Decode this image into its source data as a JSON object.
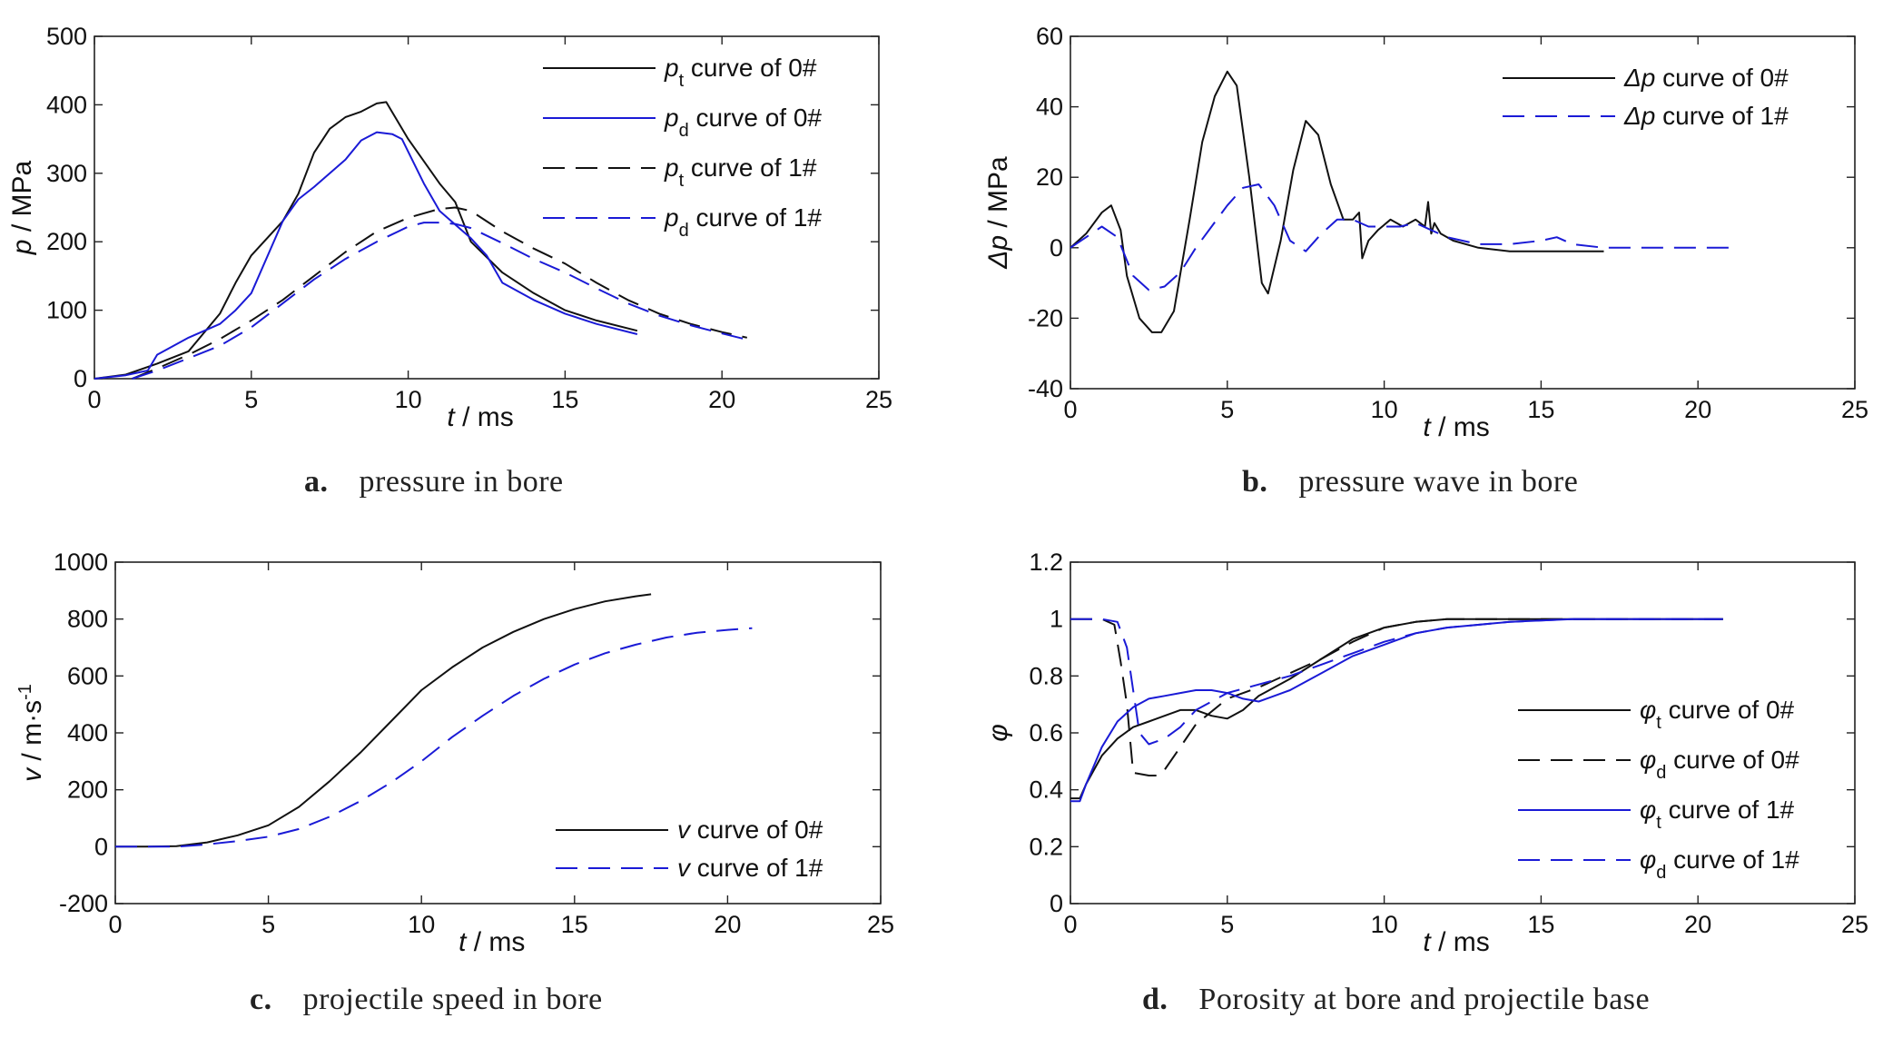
{
  "colors": {
    "black": "#111111",
    "blue": "#1a1ad6"
  },
  "panels": [
    {
      "id": "a",
      "caption": {
        "letter": "a.",
        "text": "pressure in bore"
      },
      "chart_data": {
        "type": "line",
        "xlabel_var": "t",
        "xlabel_unit": " / ms",
        "ylabel_var": "p",
        "ylabel_unit": " / MPa",
        "xlim": [
          0,
          25
        ],
        "ylim": [
          0,
          500
        ],
        "xticks": [
          0,
          5,
          10,
          15,
          20,
          25
        ],
        "yticks": [
          0,
          100,
          200,
          300,
          400,
          500
        ],
        "legend_position": "top-right",
        "series": [
          {
            "name": "p_t curve of 0#",
            "legend": {
              "sym": "p",
              "sub": "t",
              "text": " curve of  0#"
            },
            "color": "black",
            "dash": "solid",
            "x": [
              0,
              1,
              2,
              3,
              4,
              4.5,
              5,
              5.5,
              6,
              6.5,
              7,
              7.5,
              8,
              8.5,
              9,
              9.3,
              10,
              11,
              11.5,
              12,
              13,
              14,
              15,
              16,
              17.3
            ],
            "y": [
              0,
              6,
              22,
              40,
              95,
              140,
              180,
              205,
              230,
              270,
              330,
              365,
              382,
              390,
              402,
              404,
              350,
              285,
              258,
              200,
              155,
              125,
              100,
              85,
              70
            ]
          },
          {
            "name": "p_d curve of 0#",
            "legend": {
              "sym": "p",
              "sub": "d",
              "text": " curve of 0#"
            },
            "color": "blue",
            "dash": "solid",
            "x": [
              0,
              1,
              1.7,
              2,
              3,
              4,
              4.5,
              5,
              6,
              6.5,
              7,
              8,
              8.5,
              9,
              9.5,
              9.8,
              10.5,
              11,
              12,
              12.5,
              13,
              14,
              15,
              16,
              17.3
            ],
            "y": [
              0,
              5,
              12,
              35,
              60,
              80,
              100,
              125,
              230,
              262,
              280,
              320,
              348,
              360,
              357,
              350,
              285,
              245,
              205,
              180,
              140,
              115,
              95,
              80,
              65
            ]
          },
          {
            "name": "p_t curve of 1#",
            "legend": {
              "sym": "p",
              "sub": "t",
              "text": " curve of  1#"
            },
            "color": "black",
            "dash": "long",
            "x": [
              1.2,
              2,
              3,
              4,
              5,
              6,
              7,
              8,
              9,
              10,
              11,
              11.5,
              12,
              13,
              14,
              15,
              16,
              17,
              18,
              19,
              20,
              20.8
            ],
            "y": [
              0,
              15,
              35,
              58,
              85,
              115,
              150,
              185,
              215,
              235,
              248,
              250,
              245,
              215,
              190,
              168,
              140,
              115,
              95,
              80,
              68,
              60
            ]
          },
          {
            "name": "p_d curve of 1#",
            "legend": {
              "sym": "p",
              "sub": "d",
              "text": " curve of 1#"
            },
            "color": "blue",
            "dash": "long",
            "x": [
              1.2,
              2,
              3,
              4,
              5,
              6,
              7,
              8,
              9,
              10,
              10.5,
              11,
              11.5,
              12,
              13,
              14,
              15,
              16,
              17,
              18,
              19,
              20,
              20.8
            ],
            "y": [
              0,
              12,
              30,
              48,
              75,
              110,
              145,
              175,
              200,
              222,
              228,
              228,
              226,
              220,
              198,
              175,
              155,
              132,
              110,
              92,
              78,
              66,
              57
            ]
          }
        ]
      }
    },
    {
      "id": "b",
      "caption": {
        "letter": "b.",
        "text": "pressure wave in bore"
      },
      "chart_data": {
        "type": "line",
        "xlabel_var": "t",
        "xlabel_unit": " / ms",
        "ylabel_var": "Δp",
        "ylabel_unit": " / MPa",
        "xlim": [
          0,
          25
        ],
        "ylim": [
          -40,
          60
        ],
        "xticks": [
          0,
          5,
          10,
          15,
          20,
          25
        ],
        "yticks": [
          -40,
          -20,
          0,
          20,
          40,
          60
        ],
        "legend_position": "top-right",
        "series": [
          {
            "name": "Δp curve of  0#",
            "legend": {
              "sym": "Δp",
              "sub": "",
              "text": " curve of  0#"
            },
            "color": "black",
            "dash": "solid",
            "x": [
              0,
              0.5,
              1,
              1.3,
              1.6,
              1.8,
              2.2,
              2.6,
              2.9,
              3.3,
              3.8,
              4.2,
              4.6,
              5,
              5.3,
              5.7,
              6.1,
              6.3,
              6.7,
              7.1,
              7.5,
              7.9,
              8.3,
              8.7,
              9,
              9.2,
              9.3,
              9.5,
              9.8,
              10.2,
              10.6,
              11,
              11.3,
              11.4,
              11.5,
              11.6,
              11.8,
              12.2,
              13,
              14,
              15,
              16,
              17
            ],
            "y": [
              0,
              4,
              10,
              12,
              5,
              -8,
              -20,
              -24,
              -24,
              -18,
              8,
              30,
              43,
              50,
              46,
              20,
              -10,
              -13,
              2,
              22,
              36,
              32,
              18,
              8,
              8,
              10,
              -3,
              2,
              5,
              8,
              6,
              8,
              6,
              13,
              4,
              7,
              4,
              2,
              0,
              -1,
              -1,
              -1,
              -1
            ]
          },
          {
            "name": "Δp curve of 1#",
            "legend": {
              "sym": "Δp",
              "sub": "",
              "text": " curve of 1#"
            },
            "color": "blue",
            "dash": "long",
            "x": [
              0,
              1,
              1.5,
              2,
              2.5,
              3,
              3.5,
              4,
              4.5,
              5,
              5.5,
              6,
              6.5,
              7,
              7.5,
              8,
              8.5,
              9,
              9.5,
              10,
              10.5,
              11,
              12,
              13,
              14,
              15,
              15.5,
              16,
              17,
              18,
              19,
              20,
              21
            ],
            "y": [
              0,
              6,
              3,
              -8,
              -12,
              -11,
              -7,
              0,
              6,
              12,
              17,
              18,
              12,
              2,
              -1,
              4,
              8,
              8,
              6,
              6,
              6,
              7,
              3,
              1,
              1,
              2,
              3,
              1,
              0,
              0,
              0,
              0,
              0
            ]
          }
        ]
      }
    },
    {
      "id": "c",
      "caption": {
        "letter": "c.",
        "text": "projectile speed in bore"
      },
      "chart_data": {
        "type": "line",
        "xlabel_var": "t",
        "xlabel_unit": " / ms",
        "ylabel_var": "v",
        "ylabel_unit": " / m·s",
        "ylabel_sup": "-1",
        "xlim": [
          0,
          25
        ],
        "ylim": [
          -200,
          1000
        ],
        "xticks": [
          0,
          5,
          10,
          15,
          20,
          25
        ],
        "yticks": [
          -200,
          0,
          200,
          400,
          600,
          800,
          1000
        ],
        "legend_position": "bottom-right",
        "series": [
          {
            "name": "v curve of 0#",
            "legend": {
              "sym": "v",
              "sub": "",
              "text": " curve of 0#"
            },
            "color": "black",
            "dash": "solid",
            "x": [
              0,
              1,
              2,
              3,
              4,
              5,
              6,
              7,
              8,
              9,
              10,
              11,
              12,
              13,
              14,
              15,
              16,
              17,
              17.5
            ],
            "y": [
              0,
              0,
              2,
              15,
              40,
              75,
              140,
              230,
              330,
              440,
              550,
              630,
              700,
              755,
              800,
              835,
              862,
              880,
              887
            ]
          },
          {
            "name": "v curve of 1#",
            "legend": {
              "sym": "v",
              "sub": "",
              "text": " curve of 1#"
            },
            "color": "blue",
            "dash": "long",
            "x": [
              0,
              1,
              2,
              3,
              4,
              5,
              6,
              7,
              8,
              9,
              10,
              11,
              12,
              13,
              14,
              15,
              16,
              17,
              18,
              19,
              20,
              20.8
            ],
            "y": [
              0,
              0,
              0,
              8,
              20,
              35,
              62,
              105,
              160,
              225,
              300,
              385,
              460,
              530,
              590,
              640,
              680,
              710,
              735,
              752,
              762,
              768
            ]
          }
        ]
      }
    },
    {
      "id": "d",
      "caption": {
        "letter": "d.",
        "text": "Porosity at bore and projectile base"
      },
      "chart_data": {
        "type": "line",
        "xlabel_var": "t",
        "xlabel_unit": " / ms",
        "ylabel_var": "φ",
        "ylabel_unit": "",
        "xlim": [
          0,
          25
        ],
        "ylim": [
          0,
          1.2
        ],
        "xticks": [
          0,
          5,
          10,
          15,
          20,
          25
        ],
        "yticks": [
          0,
          0.2,
          0.4,
          0.6,
          0.8,
          1,
          1.2
        ],
        "legend_position": "bottom-right",
        "series": [
          {
            "name": "φt curve of 0#",
            "legend": {
              "sym": "φ",
              "sub": "t",
              "text": " curve of 0#"
            },
            "color": "black",
            "dash": "solid",
            "x": [
              0,
              0.3,
              0.5,
              1,
              1.5,
              2,
              2.5,
              3,
              3.5,
              4,
              4.5,
              5,
              5.5,
              6,
              7,
              8,
              9,
              10,
              11,
              12,
              14,
              16,
              18,
              20,
              20.8
            ],
            "y": [
              0.37,
              0.37,
              0.42,
              0.52,
              0.58,
              0.62,
              0.64,
              0.66,
              0.68,
              0.68,
              0.66,
              0.65,
              0.68,
              0.73,
              0.79,
              0.86,
              0.93,
              0.97,
              0.99,
              1.0,
              1.0,
              1.0,
              1.0,
              1.0,
              1.0
            ]
          },
          {
            "name": "φd curve of 0#",
            "legend": {
              "sym": "φ",
              "sub": "d",
              "text": " curve of 0#"
            },
            "color": "black",
            "dash": "long",
            "x": [
              0,
              1,
              1.4,
              1.6,
              1.8,
              2,
              2.5,
              2.8,
              3,
              3.5,
              4,
              5,
              6,
              7,
              8,
              9,
              10,
              11,
              12,
              14,
              16,
              18,
              20,
              20.8
            ],
            "y": [
              1.0,
              1.0,
              0.98,
              0.85,
              0.7,
              0.46,
              0.45,
              0.45,
              0.47,
              0.55,
              0.63,
              0.72,
              0.76,
              0.81,
              0.86,
              0.92,
              0.97,
              0.99,
              1.0,
              1.0,
              1.0,
              1.0,
              1.0,
              1.0
            ]
          },
          {
            "name": "φt curve of 1#",
            "legend": {
              "sym": "φ",
              "sub": "t",
              "text": " curve of 1#"
            },
            "color": "blue",
            "dash": "solid",
            "x": [
              0,
              0.3,
              0.5,
              1,
              1.5,
              2,
              2.5,
              3,
              3.5,
              4,
              4.5,
              5,
              5.5,
              6,
              7,
              8,
              9,
              10,
              11,
              12,
              14,
              16,
              18,
              20,
              20.8
            ],
            "y": [
              0.36,
              0.36,
              0.42,
              0.55,
              0.64,
              0.69,
              0.72,
              0.73,
              0.74,
              0.75,
              0.75,
              0.74,
              0.72,
              0.71,
              0.75,
              0.81,
              0.87,
              0.91,
              0.95,
              0.97,
              0.99,
              1.0,
              1.0,
              1.0,
              1.0
            ]
          },
          {
            "name": "φd curve of 1#",
            "legend": {
              "sym": "φ",
              "sub": "d",
              "text": " curve of 1#"
            },
            "color": "blue",
            "dash": "long",
            "x": [
              0,
              1,
              1.5,
              1.8,
              2,
              2.2,
              2.5,
              3,
              3.5,
              4,
              5,
              6,
              7,
              8,
              9,
              10,
              11,
              12,
              14,
              16,
              18,
              20,
              20.8
            ],
            "y": [
              1.0,
              1.0,
              0.99,
              0.9,
              0.75,
              0.6,
              0.56,
              0.58,
              0.62,
              0.68,
              0.74,
              0.77,
              0.8,
              0.84,
              0.88,
              0.92,
              0.95,
              0.97,
              0.99,
              1.0,
              1.0,
              1.0,
              1.0
            ]
          }
        ]
      }
    }
  ]
}
